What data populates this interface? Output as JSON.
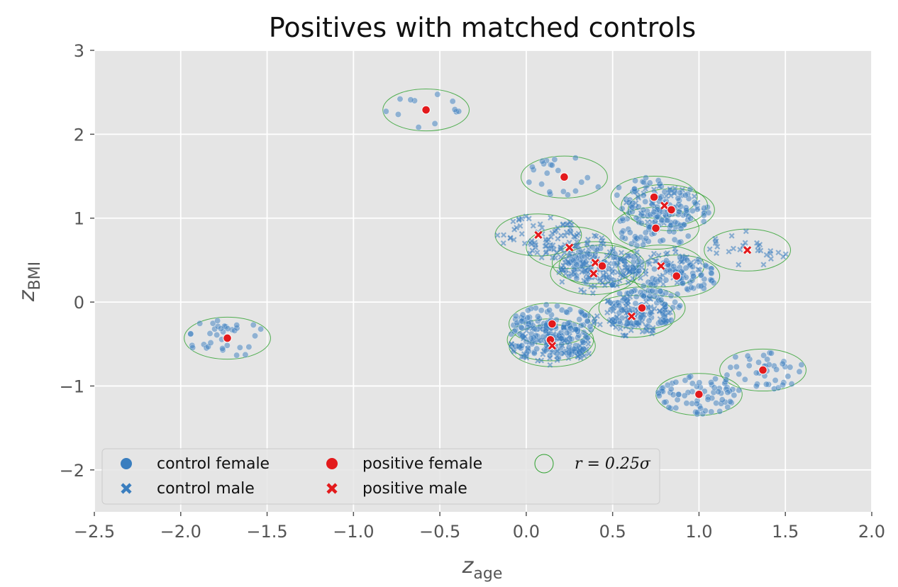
{
  "chart_data": {
    "type": "scatter",
    "title": "Positives with matched controls",
    "xlabel": {
      "base": "z",
      "sub": "age"
    },
    "ylabel": {
      "base": "z",
      "sub": "BMI"
    },
    "xlim": [
      -2.5,
      2.0
    ],
    "ylim": [
      -2.5,
      3.0
    ],
    "xticks": [
      -2.5,
      -2.0,
      -1.5,
      -1.0,
      -0.5,
      0.0,
      0.5,
      1.0,
      1.5,
      2.0
    ],
    "xtick_labels": [
      "−2.5",
      "−2.0",
      "−1.5",
      "−1.0",
      "−0.5",
      "0.0",
      "0.5",
      "1.0",
      "1.5",
      "2.0"
    ],
    "yticks": [
      -2,
      -1,
      0,
      1,
      2,
      3
    ],
    "ytick_labels": [
      "−2",
      "−1",
      "0",
      "1",
      "2",
      "3"
    ],
    "grid": true,
    "legend_position": "lower-left",
    "colors": {
      "background": "#e5e5e5",
      "grid": "#ffffff",
      "control": "#3a7ebf",
      "positive": "#e31a1c",
      "circle": "#2ca02c"
    },
    "legend": [
      {
        "label": "control female",
        "marker": "circle",
        "color": "#3a7ebf"
      },
      {
        "label": "control male",
        "marker": "x",
        "color": "#3a7ebf"
      },
      {
        "label": "positive female",
        "marker": "circle",
        "color": "#e31a1c"
      },
      {
        "label": "positive male",
        "marker": "x",
        "color": "#e31a1c"
      },
      {
        "label": "r = 0.25σ",
        "marker": "ring",
        "color": "#2ca02c"
      }
    ],
    "match_radius_sigma": 0.25,
    "positives": [
      {
        "x": -1.73,
        "y": -0.43,
        "sex": "female"
      },
      {
        "x": -0.58,
        "y": 2.29,
        "sex": "female"
      },
      {
        "x": 0.22,
        "y": 1.49,
        "sex": "female"
      },
      {
        "x": 0.74,
        "y": 1.25,
        "sex": "female"
      },
      {
        "x": 0.8,
        "y": 1.15,
        "sex": "male"
      },
      {
        "x": 0.84,
        "y": 1.1,
        "sex": "female"
      },
      {
        "x": 0.75,
        "y": 0.88,
        "sex": "female"
      },
      {
        "x": 0.07,
        "y": 0.8,
        "sex": "male"
      },
      {
        "x": 0.25,
        "y": 0.65,
        "sex": "male"
      },
      {
        "x": 1.28,
        "y": 0.62,
        "sex": "male"
      },
      {
        "x": 0.4,
        "y": 0.47,
        "sex": "male"
      },
      {
        "x": 0.44,
        "y": 0.43,
        "sex": "female"
      },
      {
        "x": 0.78,
        "y": 0.43,
        "sex": "male"
      },
      {
        "x": 0.39,
        "y": 0.34,
        "sex": "male"
      },
      {
        "x": 0.87,
        "y": 0.31,
        "sex": "female"
      },
      {
        "x": 0.67,
        "y": -0.07,
        "sex": "female"
      },
      {
        "x": 0.61,
        "y": -0.17,
        "sex": "male"
      },
      {
        "x": 0.15,
        "y": -0.26,
        "sex": "female"
      },
      {
        "x": 0.14,
        "y": -0.45,
        "sex": "female"
      },
      {
        "x": 0.15,
        "y": -0.52,
        "sex": "male"
      },
      {
        "x": 1.37,
        "y": -0.81,
        "sex": "female"
      },
      {
        "x": 1.0,
        "y": -1.1,
        "sex": "female"
      }
    ],
    "control_clusters": [
      {
        "cx": -1.73,
        "cy": -0.43,
        "n": 36,
        "sex": "female"
      },
      {
        "cx": -0.58,
        "cy": 2.29,
        "n": 12,
        "sex": "female"
      },
      {
        "cx": 0.22,
        "cy": 1.49,
        "n": 22,
        "sex": "female"
      },
      {
        "cx": 0.74,
        "cy": 1.25,
        "n": 45,
        "sex": "female"
      },
      {
        "cx": 0.8,
        "cy": 1.15,
        "n": 40,
        "sex": "male"
      },
      {
        "cx": 0.84,
        "cy": 1.1,
        "n": 45,
        "sex": "female"
      },
      {
        "cx": 0.75,
        "cy": 0.88,
        "n": 65,
        "sex": "female"
      },
      {
        "cx": 0.07,
        "cy": 0.8,
        "n": 50,
        "sex": "male"
      },
      {
        "cx": 0.25,
        "cy": 0.65,
        "n": 50,
        "sex": "male"
      },
      {
        "cx": 1.28,
        "cy": 0.62,
        "n": 28,
        "sex": "male"
      },
      {
        "cx": 0.4,
        "cy": 0.47,
        "n": 55,
        "sex": "male"
      },
      {
        "cx": 0.44,
        "cy": 0.43,
        "n": 55,
        "sex": "female"
      },
      {
        "cx": 0.78,
        "cy": 0.43,
        "n": 60,
        "sex": "male"
      },
      {
        "cx": 0.39,
        "cy": 0.34,
        "n": 50,
        "sex": "male"
      },
      {
        "cx": 0.87,
        "cy": 0.31,
        "n": 75,
        "sex": "female"
      },
      {
        "cx": 0.67,
        "cy": -0.07,
        "n": 90,
        "sex": "female"
      },
      {
        "cx": 0.61,
        "cy": -0.17,
        "n": 80,
        "sex": "male"
      },
      {
        "cx": 0.15,
        "cy": -0.26,
        "n": 90,
        "sex": "female"
      },
      {
        "cx": 0.14,
        "cy": -0.45,
        "n": 85,
        "sex": "female"
      },
      {
        "cx": 0.15,
        "cy": -0.52,
        "n": 70,
        "sex": "male"
      },
      {
        "cx": 1.37,
        "cy": -0.81,
        "n": 40,
        "sex": "female"
      },
      {
        "cx": 1.0,
        "cy": -1.1,
        "n": 75,
        "sex": "female"
      }
    ]
  }
}
